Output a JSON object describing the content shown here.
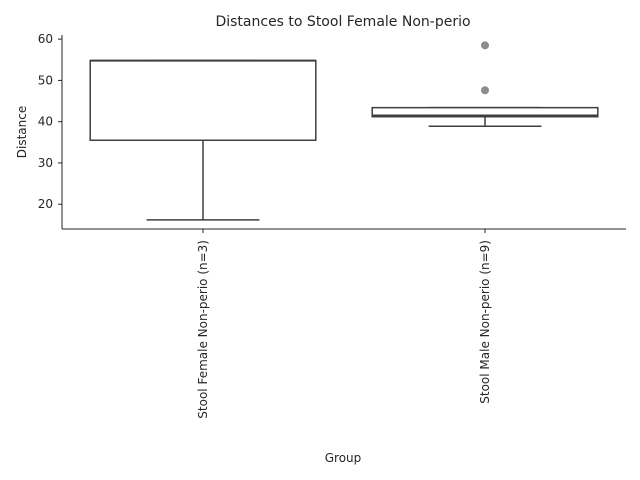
{
  "chart_data": {
    "type": "box",
    "title": "Distances to Stool Female Non-perio",
    "xlabel": "Group",
    "ylabel": "Distance",
    "categories": [
      "Stool Female Non-perio (n=3)",
      "Stool Male Non-perio (n=9)"
    ],
    "ylim": [
      14,
      61
    ],
    "yticks": [
      20,
      30,
      40,
      50,
      60
    ],
    "grid": false,
    "boxes": [
      {
        "category": "Stool Female Non-perio (n=3)",
        "whisker_low": 16.2,
        "q1": 35.5,
        "median": 54.8,
        "q3": 54.8,
        "whisker_high": 54.8,
        "outliers": []
      },
      {
        "category": "Stool Male Non-perio (n=9)",
        "whisker_low": 38.9,
        "q1": 41.2,
        "median": 41.5,
        "q3": 43.4,
        "whisker_high": 43.4,
        "outliers": [
          47.6,
          58.5
        ]
      }
    ],
    "colors": {
      "box_edge": "#3f3f3f",
      "box_fill": "#ffffff",
      "outlier": "#8c8c8c",
      "axis": "#262626"
    }
  }
}
